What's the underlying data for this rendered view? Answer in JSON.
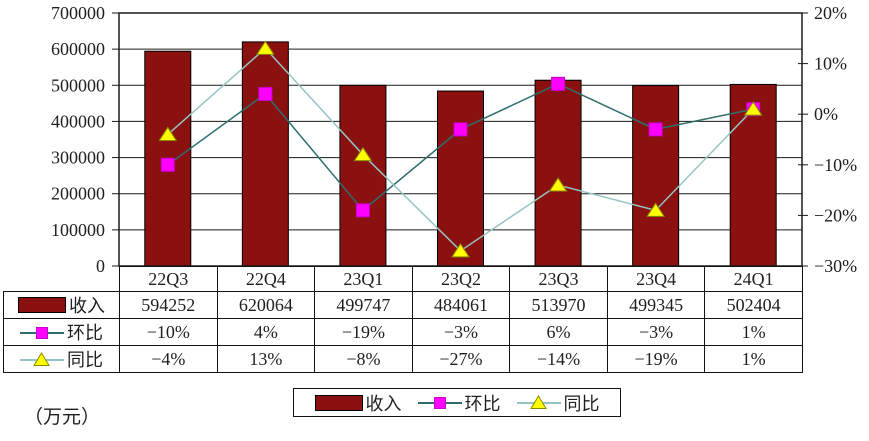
{
  "chart_data": {
    "type": "bar",
    "subtype": "combo-bar-line",
    "categories": [
      "22Q3",
      "22Q4",
      "23Q1",
      "23Q2",
      "23Q3",
      "23Q4",
      "24Q1"
    ],
    "series": [
      {
        "id": "revenue",
        "name": "收入",
        "type": "bar",
        "axis": "left",
        "values": [
          594252,
          620064,
          499747,
          484061,
          513970,
          499345,
          502404
        ],
        "color": "#8b1111",
        "border_color": "#000000"
      },
      {
        "id": "qoq",
        "name": "环比",
        "type": "line",
        "axis": "right",
        "marker": "square",
        "values": [
          -10,
          4,
          -19,
          -3,
          6,
          -3,
          1
        ],
        "line_color": "#2e6e6e",
        "marker_fill": "#ff00ff",
        "marker_stroke": "#cc00cc"
      },
      {
        "id": "yoy",
        "name": "同比",
        "type": "line",
        "axis": "right",
        "marker": "triangle",
        "values": [
          -4,
          13,
          -8,
          -27,
          -14,
          -19,
          1
        ],
        "line_color": "#96c4c4",
        "marker_fill": "#ffff00",
        "marker_stroke": "#8a8a00"
      }
    ],
    "left_axis": {
      "min": 0,
      "max": 700000,
      "step": 100000,
      "tick_labels": [
        "700000",
        "600000",
        "500000",
        "400000",
        "300000",
        "200000",
        "100000",
        "0"
      ]
    },
    "right_axis": {
      "min": -30,
      "max": 20,
      "step": 10,
      "tick_labels": [
        "20%",
        "10%",
        "0%",
        "−10%",
        "−20%",
        "−30%"
      ]
    },
    "grid": "horizontal",
    "legend_position": "bottom",
    "unit_label": "（万元）"
  },
  "table": {
    "header_row": [
      "22Q3",
      "22Q4",
      "23Q1",
      "23Q2",
      "23Q3",
      "23Q4",
      "24Q1"
    ],
    "rows": [
      {
        "id": "revenue",
        "label": "收入",
        "cells": [
          "594252",
          "620064",
          "499747",
          "484061",
          "513970",
          "499345",
          "502404"
        ]
      },
      {
        "id": "qoq",
        "label": "环比",
        "cells": [
          "−10%",
          "4%",
          "−19%",
          "−3%",
          "6%",
          "−3%",
          "1%"
        ]
      },
      {
        "id": "yoy",
        "label": "同比",
        "cells": [
          "−4%",
          "13%",
          "−8%",
          "−27%",
          "−14%",
          "−19%",
          "1%"
        ]
      }
    ]
  },
  "legend": {
    "items": [
      {
        "id": "revenue",
        "label": "收入"
      },
      {
        "id": "qoq",
        "label": "环比"
      },
      {
        "id": "yoy",
        "label": "同比"
      }
    ]
  },
  "colors": {
    "axis": "#1a1a1a",
    "grid": "#1a1a1a",
    "text": "#1f1f1f",
    "background": "#ffffff"
  }
}
